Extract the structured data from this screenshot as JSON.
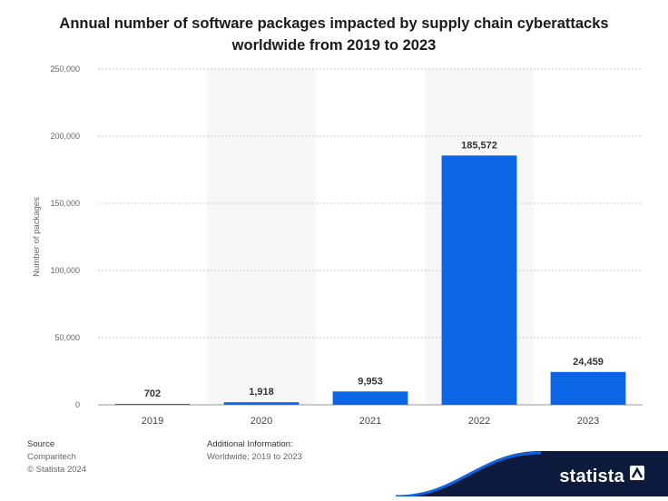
{
  "chart_data": {
    "type": "bar",
    "title": "Annual number of software packages impacted by supply chain cyberattacks worldwide from 2019 to 2023",
    "categories": [
      "2019",
      "2020",
      "2021",
      "2022",
      "2023"
    ],
    "values": [
      702,
      1918,
      9953,
      185572,
      24459
    ],
    "value_labels": [
      "702",
      "1,918",
      "9,953",
      "185,572",
      "24,459"
    ],
    "ylabel": "Number of packages",
    "xlabel": "",
    "ylim": [
      0,
      250000
    ],
    "yticks": [
      0,
      50000,
      100000,
      150000,
      200000,
      250000
    ],
    "ytick_labels": [
      "0",
      "50,000",
      "100,000",
      "150,000",
      "200,000",
      "250,000"
    ],
    "grid": true,
    "bar_color": "#0a66e4",
    "alt_band_color": "#f7f7f7"
  },
  "footer": {
    "source_heading": "Source",
    "source_lines": [
      "Comparitech",
      "© Statista 2024"
    ],
    "info_heading": "Additional Information:",
    "info_lines": [
      "Worldwide; 2019 to 2023"
    ]
  },
  "brand": {
    "name": "statista",
    "background": "#0b1a3d",
    "accent": "#0a66e4"
  }
}
